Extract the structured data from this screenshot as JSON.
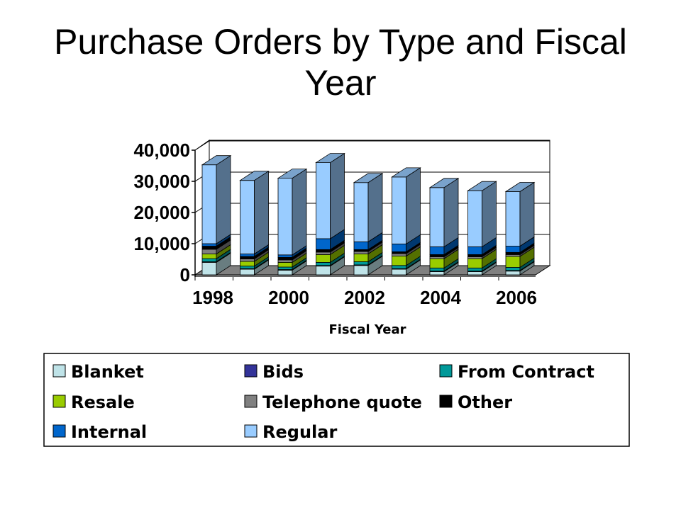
{
  "chart_data": {
    "type": "bar",
    "stacked": true,
    "three_d": true,
    "title": "Purchase Orders by Type and Fiscal Year",
    "xlabel": "Fiscal Year",
    "ylabel": "",
    "ylim": [
      0,
      40000
    ],
    "yticks": [
      0,
      10000,
      20000,
      30000,
      40000
    ],
    "ytick_labels": [
      "0",
      "10,000",
      "20,000",
      "30,000",
      "40,000"
    ],
    "categories": [
      "1998",
      "1999",
      "2000",
      "2001",
      "2002",
      "2003",
      "2004",
      "2005",
      "2006"
    ],
    "xtick_labels": [
      "1998",
      "",
      "2000",
      "",
      "2002",
      "",
      "2004",
      "",
      "2006"
    ],
    "grid": true,
    "legend_position": "bottom",
    "series": [
      {
        "name": "Blanket",
        "color": "#bfe3e8",
        "values": [
          4000,
          1800,
          1500,
          2800,
          3000,
          1800,
          1000,
          1000,
          1200
        ]
      },
      {
        "name": "Bids",
        "color": "#333399",
        "values": [
          200,
          200,
          200,
          200,
          200,
          200,
          200,
          200,
          200
        ]
      },
      {
        "name": "From Contract",
        "color": "#009999",
        "values": [
          1000,
          800,
          800,
          1000,
          1000,
          1000,
          1000,
          1000,
          1000
        ]
      },
      {
        "name": "Resale",
        "color": "#99cc00",
        "values": [
          1500,
          1500,
          1500,
          2500,
          2500,
          3000,
          3000,
          3000,
          3500
        ]
      },
      {
        "name": "Telephone quote",
        "color": "#808080",
        "values": [
          1500,
          800,
          800,
          800,
          800,
          800,
          600,
          600,
          600
        ]
      },
      {
        "name": "Other",
        "color": "#000000",
        "values": [
          1000,
          800,
          800,
          800,
          600,
          600,
          700,
          700,
          700
        ]
      },
      {
        "name": "Internal",
        "color": "#0066cc",
        "values": [
          800,
          800,
          800,
          3500,
          2500,
          2500,
          2500,
          2500,
          2000
        ]
      },
      {
        "name": "Regular",
        "color": "#99ccff",
        "values": [
          25300,
          23600,
          24600,
          24400,
          19000,
          21500,
          19000,
          18000,
          17500
        ]
      }
    ]
  }
}
